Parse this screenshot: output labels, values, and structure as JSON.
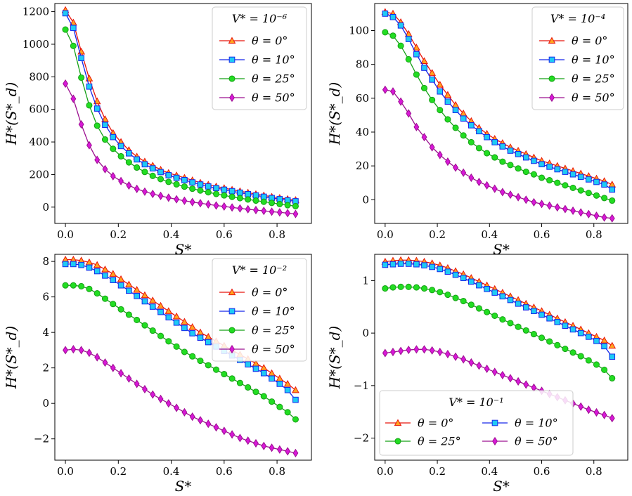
{
  "chart_data": [
    {
      "type": "line",
      "panel": "top-left",
      "title": "",
      "xlabel": "S*",
      "ylabel": "H*(S*_d)",
      "xlim": [
        -0.04,
        0.93
      ],
      "ylim": [
        -100,
        1250
      ],
      "xticks": [
        0.0,
        0.2,
        0.4,
        0.6,
        0.8
      ],
      "xtick_labels": [
        "0.0",
        "0.2",
        "0.4",
        "0.6",
        "0.8"
      ],
      "yticks": [
        0,
        200,
        400,
        600,
        800,
        1000,
        1200
      ],
      "ytick_labels": [
        "0",
        "200",
        "400",
        "600",
        "800",
        "1000",
        "1200"
      ],
      "legend": {
        "title": "V* = 10⁻⁶",
        "location": "top-right",
        "columns": 1
      },
      "x": [
        0.0,
        0.03,
        0.06,
        0.09,
        0.12,
        0.15,
        0.18,
        0.21,
        0.24,
        0.27,
        0.3,
        0.33,
        0.36,
        0.39,
        0.42,
        0.45,
        0.48,
        0.51,
        0.54,
        0.57,
        0.6,
        0.63,
        0.66,
        0.69,
        0.72,
        0.75,
        0.78,
        0.81,
        0.84,
        0.87
      ],
      "series": [
        {
          "name": "θ = 0°",
          "color": "#e8140c",
          "marker": "triangle",
          "marker_fill": "#ffa420",
          "values": [
            1210,
            1133,
            955,
            790,
            650,
            540,
            455,
            400,
            350,
            310,
            280,
            255,
            230,
            210,
            195,
            180,
            165,
            150,
            138,
            127,
            117,
            107,
            98,
            89,
            80,
            72,
            64,
            57,
            50,
            44
          ]
        },
        {
          "name": "θ = 10°",
          "color": "#1626ea",
          "marker": "square",
          "marker_fill": "#1ecbf4",
          "values": [
            1190,
            1100,
            915,
            740,
            605,
            505,
            430,
            375,
            330,
            293,
            263,
            238,
            215,
            196,
            180,
            166,
            152,
            139,
            127,
            117,
            107,
            98,
            89,
            80,
            72,
            64,
            56,
            49,
            42,
            36
          ]
        },
        {
          "name": "θ = 25°",
          "color": "#16a016",
          "marker": "circle",
          "marker_fill": "#22dd22",
          "values": [
            1090,
            990,
            795,
            625,
            500,
            415,
            358,
            312,
            275,
            243,
            216,
            192,
            172,
            155,
            140,
            126,
            113,
            102,
            91,
            81,
            72,
            63,
            55,
            47,
            40,
            33,
            26,
            19,
            12,
            6
          ]
        },
        {
          "name": "θ = 50°",
          "color": "#9c1090",
          "marker": "diamond",
          "marker_fill": "#d818d8",
          "values": [
            758,
            665,
            508,
            380,
            290,
            233,
            190,
            160,
            133,
            112,
            95,
            81,
            69,
            58,
            48,
            39,
            31,
            24,
            17,
            10,
            4,
            -2,
            -8,
            -13,
            -18,
            -23,
            -28,
            -32,
            -37,
            -42
          ]
        }
      ]
    },
    {
      "type": "line",
      "panel": "top-right",
      "title": "",
      "xlabel": "S*",
      "ylabel": "H*(S*_d)",
      "xlim": [
        -0.04,
        0.93
      ],
      "ylim": [
        -14,
        116
      ],
      "xticks": [
        0.0,
        0.2,
        0.4,
        0.6,
        0.8
      ],
      "xtick_labels": [
        "0.0",
        "0.2",
        "0.4",
        "0.6",
        "0.8"
      ],
      "yticks": [
        0,
        20,
        40,
        60,
        80,
        100
      ],
      "ytick_labels": [
        "0",
        "20",
        "40",
        "60",
        "80",
        "100"
      ],
      "legend": {
        "title": "V* = 10⁻⁴",
        "location": "top-right",
        "columns": 1
      },
      "x": [
        0.0,
        0.03,
        0.06,
        0.09,
        0.12,
        0.15,
        0.18,
        0.21,
        0.24,
        0.27,
        0.3,
        0.33,
        0.36,
        0.39,
        0.42,
        0.45,
        0.48,
        0.51,
        0.54,
        0.57,
        0.6,
        0.63,
        0.66,
        0.69,
        0.72,
        0.75,
        0.78,
        0.81,
        0.84,
        0.87
      ],
      "series": [
        {
          "name": "θ = 0°",
          "color": "#e8140c",
          "marker": "triangle",
          "marker_fill": "#ffa420",
          "values": [
            111,
            110,
            105,
            98,
            90,
            82,
            75,
            68,
            62,
            56,
            51,
            46.5,
            42.5,
            39,
            36,
            33.5,
            31,
            29,
            27,
            25,
            23,
            21.5,
            20,
            18.5,
            17,
            15.5,
            14,
            12.5,
            11,
            9
          ]
        },
        {
          "name": "θ = 10°",
          "color": "#1626ea",
          "marker": "square",
          "marker_fill": "#1ecbf4",
          "values": [
            110,
            108,
            103,
            95,
            86,
            78,
            71,
            64,
            58,
            53,
            48,
            44,
            40.5,
            37,
            34,
            31.5,
            29,
            27,
            25,
            23,
            21,
            19.5,
            18,
            16.5,
            15,
            13.5,
            12,
            10.5,
            9,
            6
          ]
        },
        {
          "name": "θ = 25°",
          "color": "#16a016",
          "marker": "circle",
          "marker_fill": "#22dd22",
          "values": [
            99,
            97,
            91,
            83,
            74,
            66,
            59,
            53,
            47.5,
            42.5,
            38,
            34,
            30.5,
            27.5,
            25,
            22.5,
            20.5,
            18.5,
            16.5,
            15,
            13,
            11.5,
            10,
            8.5,
            7,
            5.5,
            4,
            2.5,
            1,
            -0.5
          ]
        },
        {
          "name": "θ = 50°",
          "color": "#9c1090",
          "marker": "diamond",
          "marker_fill": "#d818d8",
          "values": [
            65,
            64,
            58,
            51,
            43,
            37,
            31,
            26.5,
            22.5,
            19,
            16,
            13,
            10.5,
            8.5,
            6.5,
            4.5,
            3,
            1.5,
            0,
            -1.5,
            -2.5,
            -3.5,
            -4.5,
            -5.5,
            -6.5,
            -7.5,
            -8.5,
            -9.5,
            -10.5,
            -11
          ]
        }
      ]
    },
    {
      "type": "line",
      "panel": "bottom-left",
      "title": "",
      "xlabel": "S*",
      "ylabel": "H*(S*_d)",
      "xlim": [
        -0.04,
        0.93
      ],
      "ylim": [
        -3.2,
        8.4
      ],
      "xticks": [
        0.0,
        0.2,
        0.4,
        0.6,
        0.8
      ],
      "xtick_labels": [
        "0.0",
        "0.2",
        "0.4",
        "0.6",
        "0.8"
      ],
      "yticks": [
        -2,
        0,
        2,
        4,
        6,
        8
      ],
      "ytick_labels": [
        "−2",
        "0",
        "2",
        "4",
        "6",
        "8"
      ],
      "legend": {
        "title": "V* = 10⁻²",
        "location": "top-right",
        "columns": 1
      },
      "x": [
        0.0,
        0.03,
        0.06,
        0.09,
        0.12,
        0.15,
        0.18,
        0.21,
        0.24,
        0.27,
        0.3,
        0.33,
        0.36,
        0.39,
        0.42,
        0.45,
        0.48,
        0.51,
        0.54,
        0.57,
        0.6,
        0.63,
        0.66,
        0.69,
        0.72,
        0.75,
        0.78,
        0.81,
        0.84,
        0.87
      ],
      "series": [
        {
          "name": "θ = 0°",
          "color": "#e8140c",
          "marker": "triangle",
          "marker_fill": "#ffa420",
          "values": [
            8.1,
            8.1,
            8.05,
            7.95,
            7.8,
            7.55,
            7.3,
            7.0,
            6.7,
            6.4,
            6.1,
            5.8,
            5.5,
            5.2,
            4.9,
            4.6,
            4.3,
            4.0,
            3.75,
            3.5,
            3.25,
            3.0,
            2.75,
            2.5,
            2.25,
            2.0,
            1.7,
            1.4,
            1.1,
            0.75
          ]
        },
        {
          "name": "θ = 10°",
          "color": "#1626ea",
          "marker": "square",
          "marker_fill": "#1ecbf4",
          "values": [
            7.85,
            7.85,
            7.8,
            7.65,
            7.45,
            7.2,
            6.95,
            6.65,
            6.35,
            6.05,
            5.75,
            5.45,
            5.15,
            4.85,
            4.55,
            4.25,
            3.95,
            3.7,
            3.45,
            3.2,
            2.95,
            2.7,
            2.45,
            2.2,
            1.95,
            1.7,
            1.4,
            1.1,
            0.75,
            0.2
          ]
        },
        {
          "name": "θ = 25°",
          "color": "#16a016",
          "marker": "circle",
          "marker_fill": "#22dd22",
          "values": [
            6.65,
            6.65,
            6.6,
            6.45,
            6.2,
            5.9,
            5.6,
            5.3,
            5.0,
            4.7,
            4.4,
            4.1,
            3.8,
            3.5,
            3.2,
            2.9,
            2.65,
            2.4,
            2.15,
            1.9,
            1.65,
            1.4,
            1.15,
            0.9,
            0.65,
            0.4,
            0.1,
            -0.2,
            -0.5,
            -0.9
          ]
        },
        {
          "name": "θ = 50°",
          "color": "#9c1090",
          "marker": "diamond",
          "marker_fill": "#d818d8",
          "values": [
            3.0,
            3.05,
            3.0,
            2.85,
            2.6,
            2.3,
            2.0,
            1.7,
            1.4,
            1.1,
            0.8,
            0.5,
            0.25,
            0.0,
            -0.25,
            -0.5,
            -0.75,
            -0.95,
            -1.15,
            -1.35,
            -1.55,
            -1.75,
            -1.95,
            -2.1,
            -2.25,
            -2.4,
            -2.5,
            -2.6,
            -2.7,
            -2.8
          ]
        }
      ]
    },
    {
      "type": "line",
      "panel": "bottom-right",
      "title": "",
      "xlabel": "S*",
      "ylabel": "H*(S*_d)",
      "xlim": [
        -0.04,
        0.93
      ],
      "ylim": [
        -2.42,
        1.5
      ],
      "xticks": [
        0.0,
        0.2,
        0.4,
        0.6,
        0.8
      ],
      "xtick_labels": [
        "0.0",
        "0.2",
        "0.4",
        "0.6",
        "0.8"
      ],
      "yticks": [
        -2,
        -1,
        0,
        1
      ],
      "ytick_labels": [
        "−2",
        "−1",
        "0",
        "1"
      ],
      "legend": {
        "title": "V* = 10⁻¹",
        "location": "bottom-left",
        "columns": 2
      },
      "x": [
        0.0,
        0.03,
        0.06,
        0.09,
        0.12,
        0.15,
        0.18,
        0.21,
        0.24,
        0.27,
        0.3,
        0.33,
        0.36,
        0.39,
        0.42,
        0.45,
        0.48,
        0.51,
        0.54,
        0.57,
        0.6,
        0.63,
        0.66,
        0.69,
        0.72,
        0.75,
        0.78,
        0.81,
        0.84,
        0.87
      ],
      "series": [
        {
          "name": "θ = 0°",
          "color": "#e8140c",
          "marker": "triangle",
          "marker_fill": "#ffa420",
          "values": [
            1.36,
            1.38,
            1.39,
            1.39,
            1.38,
            1.36,
            1.33,
            1.29,
            1.24,
            1.18,
            1.12,
            1.05,
            0.98,
            0.91,
            0.84,
            0.77,
            0.7,
            0.63,
            0.56,
            0.49,
            0.42,
            0.35,
            0.28,
            0.21,
            0.14,
            0.07,
            0.0,
            -0.07,
            -0.14,
            -0.24
          ]
        },
        {
          "name": "θ = 10°",
          "color": "#1626ea",
          "marker": "square",
          "marker_fill": "#1ecbf4",
          "values": [
            1.3,
            1.31,
            1.32,
            1.32,
            1.31,
            1.29,
            1.26,
            1.22,
            1.17,
            1.11,
            1.05,
            0.98,
            0.91,
            0.84,
            0.77,
            0.7,
            0.63,
            0.56,
            0.49,
            0.42,
            0.35,
            0.28,
            0.21,
            0.14,
            0.07,
            0.0,
            -0.07,
            -0.15,
            -0.25,
            -0.45
          ]
        },
        {
          "name": "θ = 25°",
          "color": "#16a016",
          "marker": "circle",
          "marker_fill": "#22dd22",
          "values": [
            0.85,
            0.87,
            0.88,
            0.88,
            0.87,
            0.85,
            0.82,
            0.78,
            0.73,
            0.67,
            0.61,
            0.54,
            0.47,
            0.4,
            0.33,
            0.26,
            0.19,
            0.12,
            0.05,
            -0.02,
            -0.09,
            -0.16,
            -0.23,
            -0.3,
            -0.37,
            -0.44,
            -0.52,
            -0.6,
            -0.7,
            -0.86
          ]
        },
        {
          "name": "θ = 50°",
          "color": "#9c1090",
          "marker": "diamond",
          "marker_fill": "#d818d8",
          "values": [
            -0.38,
            -0.36,
            -0.34,
            -0.32,
            -0.31,
            -0.31,
            -0.33,
            -0.36,
            -0.4,
            -0.45,
            -0.5,
            -0.56,
            -0.62,
            -0.68,
            -0.74,
            -0.8,
            -0.86,
            -0.92,
            -0.98,
            -1.04,
            -1.1,
            -1.16,
            -1.22,
            -1.28,
            -1.34,
            -1.4,
            -1.46,
            -1.51,
            -1.56,
            -1.62
          ]
        }
      ]
    }
  ]
}
